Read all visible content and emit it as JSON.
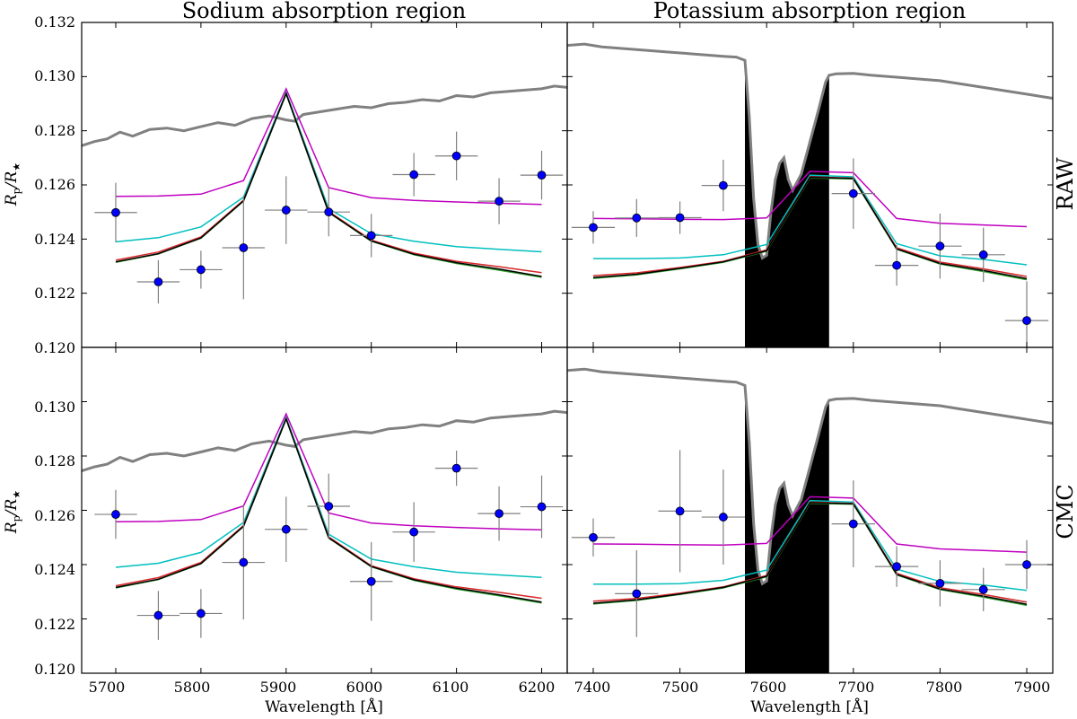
{
  "chart_data": {
    "type": "line",
    "titles": [
      "Sodium absorption region",
      "Potassium absorption region"
    ],
    "row_labels": [
      "RAW",
      "CMC"
    ],
    "xlabel": "Wavelength [Å]",
    "ylabel": "Rp/R★",
    "ylabel_main": "R",
    "ylabel_sub1": "p",
    "ylabel_mid": "/R",
    "ylabel_sub2": "★",
    "ylim": [
      0.12,
      0.132
    ],
    "yticks": [
      "0.132",
      "0.130",
      "0.128",
      "0.126",
      "0.124",
      "0.122",
      "0.120"
    ],
    "yticks_lower": [
      "0.130",
      "0.128",
      "0.126",
      "0.124",
      "0.122",
      "0.120"
    ],
    "na": {
      "xlim": [
        5660,
        6230
      ],
      "xticks": [
        "5700",
        "5800",
        "5900",
        "6000",
        "6100",
        "6200"
      ],
      "model_x": [
        5700,
        5750,
        5800,
        5850,
        5900,
        5950,
        6000,
        6050,
        6100,
        6150,
        6200
      ],
      "models": [
        {
          "name": "magenta",
          "color": "#bf00bf",
          "values": [
            0.12558,
            0.12559,
            0.12566,
            0.12616,
            0.12955,
            0.1259,
            0.12553,
            0.12543,
            0.12537,
            0.12532,
            0.12528
          ]
        },
        {
          "name": "cyan",
          "color": "#00bfbf",
          "values": [
            0.1239,
            0.12405,
            0.12445,
            0.12555,
            0.12942,
            0.12512,
            0.1242,
            0.12392,
            0.12372,
            0.12362,
            0.12353
          ]
        },
        {
          "name": "red",
          "color": "#d62728",
          "values": [
            0.12322,
            0.12352,
            0.12408,
            0.12544,
            0.12938,
            0.12502,
            0.12396,
            0.12348,
            0.12318,
            0.12298,
            0.12276
          ]
        },
        {
          "name": "green",
          "color": "#2ca02c",
          "values": [
            0.12314,
            0.12345,
            0.12403,
            0.1254,
            0.12936,
            0.12498,
            0.12392,
            0.12342,
            0.1231,
            0.12285,
            0.12259
          ]
        },
        {
          "name": "black",
          "color": "#000000",
          "values": [
            0.12316,
            0.12346,
            0.12404,
            0.12541,
            0.12937,
            0.12499,
            0.12393,
            0.12344,
            0.12313,
            0.12289,
            0.12262
          ]
        }
      ],
      "spectrum": {
        "color": "#808080",
        "x": [
          5660,
          5675,
          5690,
          5705,
          5720,
          5740,
          5760,
          5780,
          5800,
          5820,
          5840,
          5860,
          5880,
          5900,
          5910,
          5920,
          5940,
          5960,
          5980,
          6000,
          6020,
          6040,
          6060,
          6080,
          6100,
          6120,
          6140,
          6160,
          6180,
          6200,
          6215,
          6230
        ],
        "values": [
          0.12745,
          0.1276,
          0.1277,
          0.12795,
          0.1278,
          0.12805,
          0.1281,
          0.128,
          0.12815,
          0.1283,
          0.1282,
          0.12845,
          0.12855,
          0.1284,
          0.12835,
          0.1286,
          0.1287,
          0.1288,
          0.1289,
          0.12885,
          0.129,
          0.12905,
          0.12915,
          0.1291,
          0.1293,
          0.12925,
          0.1294,
          0.12945,
          0.1295,
          0.12955,
          0.12965,
          0.1296
        ]
      },
      "raw": [
        {
          "x": 5700,
          "xerr": 25,
          "y": 0.12498,
          "yerr": 0.0011
        },
        {
          "x": 5750,
          "xerr": 25,
          "y": 0.12242,
          "yerr": 0.0008
        },
        {
          "x": 5800,
          "xerr": 25,
          "y": 0.12287,
          "yerr": 0.0007
        },
        {
          "x": 5850,
          "xerr": 25,
          "y": 0.12368,
          "yerr": 0.0019
        },
        {
          "x": 5900,
          "xerr": 25,
          "y": 0.12507,
          "yerr": 0.00125
        },
        {
          "x": 5950,
          "xerr": 25,
          "y": 0.125,
          "yerr": 0.0009
        },
        {
          "x": 6000,
          "xerr": 25,
          "y": 0.12413,
          "yerr": 0.0008
        },
        {
          "x": 6050,
          "xerr": 25,
          "y": 0.12638,
          "yerr": 0.0008
        },
        {
          "x": 6100,
          "xerr": 25,
          "y": 0.12707,
          "yerr": 0.0009
        },
        {
          "x": 6150,
          "xerr": 25,
          "y": 0.1254,
          "yerr": 0.00085
        },
        {
          "x": 6200,
          "xerr": 25,
          "y": 0.12636,
          "yerr": 0.0009
        }
      ],
      "cmc": [
        {
          "x": 5700,
          "xerr": 25,
          "y": 0.12585,
          "yerr": 0.0009
        },
        {
          "x": 5750,
          "xerr": 25,
          "y": 0.12213,
          "yerr": 0.0009
        },
        {
          "x": 5800,
          "xerr": 25,
          "y": 0.1222,
          "yerr": 0.0009
        },
        {
          "x": 5850,
          "xerr": 25,
          "y": 0.12408,
          "yerr": 0.0021
        },
        {
          "x": 5900,
          "xerr": 25,
          "y": 0.1253,
          "yerr": 0.0012
        },
        {
          "x": 5950,
          "xerr": 25,
          "y": 0.12615,
          "yerr": 0.0012
        },
        {
          "x": 6000,
          "xerr": 25,
          "y": 0.12338,
          "yerr": 0.00145
        },
        {
          "x": 6050,
          "xerr": 25,
          "y": 0.1252,
          "yerr": 0.0011
        },
        {
          "x": 6100,
          "xerr": 25,
          "y": 0.12755,
          "yerr": 0.00065
        },
        {
          "x": 6150,
          "xerr": 25,
          "y": 0.12588,
          "yerr": 0.001
        },
        {
          "x": 6200,
          "xerr": 25,
          "y": 0.12613,
          "yerr": 0.00115
        }
      ]
    },
    "k": {
      "xlim": [
        7370,
        7930
      ],
      "xticks": [
        "7400",
        "7500",
        "7600",
        "7700",
        "7800",
        "7900"
      ],
      "telluric_band": [
        7575,
        7672
      ],
      "model_x": [
        7400,
        7450,
        7500,
        7550,
        7600,
        7650,
        7700,
        7750,
        7800,
        7850,
        7900
      ],
      "models": [
        {
          "name": "magenta",
          "color": "#bf00bf",
          "values": [
            0.12476,
            0.12475,
            0.12473,
            0.12472,
            0.12478,
            0.1265,
            0.12645,
            0.12476,
            0.12458,
            0.12452,
            0.12446
          ]
        },
        {
          "name": "cyan",
          "color": "#00bfbf",
          "values": [
            0.12328,
            0.12328,
            0.1233,
            0.12342,
            0.1238,
            0.12636,
            0.1263,
            0.12383,
            0.12338,
            0.12325,
            0.12305
          ]
        },
        {
          "name": "red",
          "color": "#d62728",
          "values": [
            0.12265,
            0.12275,
            0.12295,
            0.12318,
            0.1236,
            0.1263,
            0.12625,
            0.12368,
            0.12315,
            0.1229,
            0.12262
          ]
        },
        {
          "name": "green",
          "color": "#2ca02c",
          "values": [
            0.12255,
            0.12268,
            0.1229,
            0.12314,
            0.12355,
            0.12626,
            0.12622,
            0.12362,
            0.12308,
            0.1228,
            0.1225
          ]
        },
        {
          "name": "black",
          "color": "#000000",
          "values": [
            0.12258,
            0.1227,
            0.12292,
            0.12316,
            0.12357,
            0.12628,
            0.12624,
            0.12364,
            0.1231,
            0.12284,
            0.12254
          ]
        }
      ],
      "spectrum": {
        "color": "#808080",
        "x": [
          7370,
          7390,
          7410,
          7430,
          7450,
          7470,
          7490,
          7510,
          7530,
          7550,
          7565,
          7575,
          7580,
          7585,
          7590,
          7595,
          7600,
          7605,
          7610,
          7615,
          7620,
          7625,
          7630,
          7640,
          7650,
          7660,
          7668,
          7672,
          7680,
          7700,
          7720,
          7740,
          7760,
          7780,
          7800,
          7820,
          7840,
          7860,
          7880,
          7900,
          7920,
          7930
        ],
        "values": [
          0.13115,
          0.1312,
          0.1311,
          0.13105,
          0.131,
          0.13095,
          0.1309,
          0.13085,
          0.1308,
          0.13075,
          0.13072,
          0.1306,
          0.1285,
          0.1255,
          0.1238,
          0.1233,
          0.1234,
          0.125,
          0.1262,
          0.1268,
          0.127,
          0.1262,
          0.1258,
          0.1264,
          0.1276,
          0.1288,
          0.1298,
          0.13005,
          0.1301,
          0.13012,
          0.13005,
          0.13,
          0.12995,
          0.1299,
          0.12985,
          0.12975,
          0.12965,
          0.12955,
          0.12945,
          0.12935,
          0.12925,
          0.1292
        ]
      },
      "raw": [
        {
          "x": 7400,
          "xerr": 25,
          "y": 0.12443,
          "yerr": 0.0006
        },
        {
          "x": 7450,
          "xerr": 25,
          "y": 0.12478,
          "yerr": 0.0007
        },
        {
          "x": 7500,
          "xerr": 25,
          "y": 0.12479,
          "yerr": 0.0006
        },
        {
          "x": 7550,
          "xerr": 25,
          "y": 0.12598,
          "yerr": 0.00095
        },
        {
          "x": 7700,
          "xerr": 25,
          "y": 0.12568,
          "yerr": 0.0013
        },
        {
          "x": 7750,
          "xerr": 25,
          "y": 0.12303,
          "yerr": 0.00075
        },
        {
          "x": 7800,
          "xerr": 25,
          "y": 0.12374,
          "yerr": 0.0012
        },
        {
          "x": 7850,
          "xerr": 25,
          "y": 0.12342,
          "yerr": 0.001
        },
        {
          "x": 7900,
          "xerr": 25,
          "y": 0.12099,
          "yerr": 0.00145
        }
      ],
      "cmc": [
        {
          "x": 7400,
          "xerr": 25,
          "y": 0.125,
          "yerr": 0.0007
        },
        {
          "x": 7450,
          "xerr": 25,
          "y": 0.12293,
          "yerr": 0.0016
        },
        {
          "x": 7500,
          "xerr": 25,
          "y": 0.12597,
          "yerr": 0.00225
        },
        {
          "x": 7550,
          "xerr": 25,
          "y": 0.12575,
          "yerr": 0.00175
        },
        {
          "x": 7700,
          "xerr": 25,
          "y": 0.1255,
          "yerr": 0.0016
        },
        {
          "x": 7750,
          "xerr": 25,
          "y": 0.12393,
          "yerr": 0.00075
        },
        {
          "x": 7800,
          "xerr": 25,
          "y": 0.12331,
          "yerr": 0.00085
        },
        {
          "x": 7850,
          "xerr": 25,
          "y": 0.12308,
          "yerr": 0.0008
        },
        {
          "x": 7900,
          "xerr": 25,
          "y": 0.124,
          "yerr": 0.0009
        }
      ]
    }
  }
}
